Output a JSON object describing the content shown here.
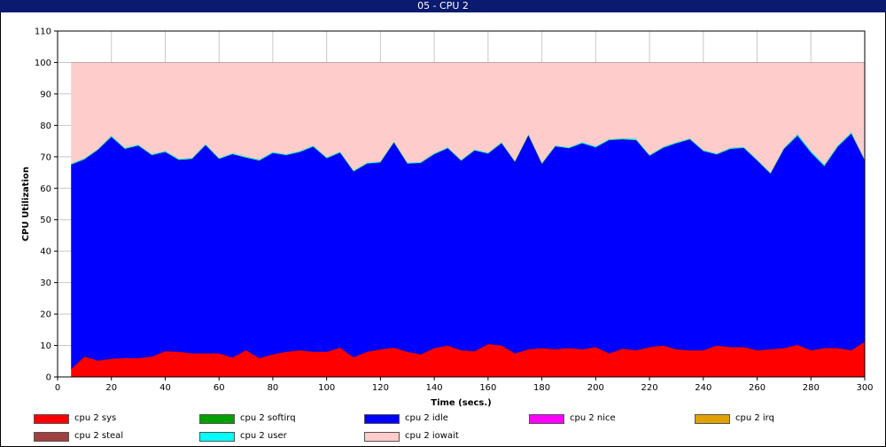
{
  "window": {
    "title": "05 - CPU 2"
  },
  "chart_data": {
    "type": "area",
    "stacked": true,
    "title": "05 - CPU 2",
    "xlabel": "Time (secs.)",
    "ylabel": "CPU Utilization",
    "xlim": [
      0,
      300
    ],
    "ylim": [
      0,
      110
    ],
    "xticks": [
      "0",
      "20",
      "40",
      "60",
      "80",
      "100",
      "120",
      "140",
      "160",
      "180",
      "200",
      "220",
      "240",
      "260",
      "280",
      "300"
    ],
    "yticks": [
      "0",
      "10",
      "20",
      "30",
      "40",
      "50",
      "60",
      "70",
      "80",
      "90",
      "100",
      "110"
    ],
    "grid": true,
    "legend_position": "bottom",
    "x": [
      5,
      10,
      15,
      20,
      25,
      30,
      35,
      40,
      45,
      50,
      55,
      60,
      65,
      70,
      75,
      80,
      85,
      90,
      95,
      100,
      105,
      110,
      115,
      120,
      125,
      130,
      135,
      140,
      145,
      150,
      155,
      160,
      165,
      170,
      175,
      180,
      185,
      190,
      195,
      200,
      205,
      210,
      215,
      220,
      225,
      230,
      235,
      240,
      245,
      250,
      255,
      260,
      265,
      270,
      275,
      280,
      285,
      290,
      295,
      300
    ],
    "series": [
      {
        "name": "cpu 2 sys",
        "color": "#ff0000",
        "values": [
          2.5,
          6.5,
          5.2,
          5.8,
          6.0,
          6.0,
          6.5,
          8.2,
          8.0,
          7.5,
          7.5,
          7.5,
          6.2,
          8.5,
          6.0,
          7.2,
          8.0,
          8.5,
          8.0,
          8.0,
          9.3,
          6.3,
          8.0,
          8.8,
          9.3,
          8.0,
          7.2,
          9.2,
          10.0,
          8.5,
          8.2,
          10.5,
          10.0,
          7.5,
          8.8,
          9.2,
          8.8,
          9.2,
          8.8,
          9.5,
          7.5,
          9.0,
          8.5,
          9.5,
          10.0,
          8.8,
          8.5,
          8.5,
          10.0,
          9.5,
          9.5,
          8.5,
          8.8,
          9.2,
          10.2,
          8.5,
          9.2,
          9.2,
          8.5,
          11.2
        ]
      },
      {
        "name": "cpu 2 softirq",
        "color": "#00a000",
        "values": [
          0,
          0,
          0,
          0,
          0,
          0,
          0,
          0,
          0,
          0,
          0,
          0,
          0,
          0,
          0,
          0,
          0,
          0,
          0,
          0,
          0,
          0,
          0,
          0,
          0,
          0,
          0,
          0,
          0,
          0,
          0,
          0,
          0,
          0,
          0,
          0,
          0,
          0,
          0,
          0,
          0,
          0,
          0,
          0,
          0,
          0,
          0,
          0,
          0,
          0,
          0,
          0,
          0,
          0,
          0,
          0,
          0,
          0,
          0,
          0
        ]
      },
      {
        "name": "cpu 2 idle",
        "color": "#0000ff",
        "values": [
          65.0,
          62.7,
          67.0,
          70.5,
          66.5,
          67.5,
          64.0,
          63.3,
          61.0,
          61.8,
          66.2,
          61.8,
          64.6,
          61.2,
          62.8,
          64.0,
          62.5,
          63.0,
          65.2,
          61.5,
          62.0,
          59.0,
          59.8,
          59.4,
          65.2,
          59.8,
          60.8,
          61.6,
          62.7,
          60.2,
          63.8,
          60.5,
          64.3,
          60.8,
          68.0,
          58.5,
          64.5,
          63.5,
          65.5,
          63.5,
          67.8,
          66.5,
          66.8,
          60.8,
          62.8,
          65.5,
          67.0,
          63.3,
          60.7,
          63.0,
          63.3,
          60.3,
          55.8,
          63.3,
          66.5,
          62.8,
          57.8,
          64.0,
          68.8,
          57.6
        ]
      },
      {
        "name": "cpu 2 nice",
        "color": "#ff00ff",
        "values": [
          0,
          0,
          0,
          0,
          0,
          0,
          0,
          0,
          0,
          0,
          0,
          0,
          0,
          0,
          0,
          0,
          0,
          0,
          0,
          0,
          0,
          0,
          0,
          0,
          0,
          0,
          0,
          0,
          0,
          0,
          0,
          0,
          0,
          0,
          0,
          0,
          0,
          0,
          0,
          0,
          0,
          0,
          0,
          0,
          0,
          0,
          0,
          0,
          0,
          0,
          0,
          0,
          0,
          0,
          0,
          0,
          0,
          0,
          0,
          0
        ]
      },
      {
        "name": "cpu 2 irq",
        "color": "#e0a000",
        "values": [
          0,
          0,
          0,
          0,
          0,
          0,
          0,
          0,
          0,
          0,
          0,
          0,
          0,
          0,
          0,
          0,
          0,
          0,
          0,
          0,
          0,
          0,
          0,
          0,
          0,
          0,
          0,
          0,
          0,
          0,
          0,
          0,
          0,
          0,
          0,
          0,
          0,
          0,
          0,
          0,
          0,
          0,
          0,
          0,
          0,
          0,
          0,
          0,
          0,
          0,
          0,
          0,
          0,
          0,
          0,
          0,
          0,
          0,
          0,
          0
        ]
      },
      {
        "name": "cpu 2 steal",
        "color": "#a04040",
        "values": [
          0,
          0,
          0,
          0,
          0,
          0,
          0,
          0,
          0,
          0,
          0,
          0,
          0,
          0,
          0,
          0,
          0,
          0,
          0,
          0,
          0,
          0,
          0,
          0,
          0,
          0,
          0,
          0,
          0,
          0,
          0,
          0,
          0,
          0,
          0,
          0,
          0,
          0,
          0,
          0,
          0,
          0,
          0,
          0,
          0,
          0,
          0,
          0,
          0,
          0,
          0,
          0,
          0,
          0,
          0,
          0,
          0,
          0,
          0,
          0
        ]
      },
      {
        "name": "cpu 2 user",
        "color": "#00ffff",
        "values": [
          0.3,
          0.3,
          0.3,
          0.4,
          0.3,
          0.3,
          0.3,
          0.3,
          0.3,
          0.3,
          0.3,
          0.3,
          0.3,
          0.3,
          0.3,
          0.3,
          0.3,
          0.3,
          0.3,
          0.3,
          0.3,
          0.3,
          0.3,
          0.3,
          0.3,
          0.3,
          0.3,
          0.3,
          0.3,
          0.3,
          0.3,
          0.3,
          0.3,
          0.3,
          0.3,
          0.3,
          0.3,
          0.3,
          0.3,
          0.3,
          0.3,
          0.3,
          0.4,
          0.3,
          0.3,
          0.3,
          0.3,
          0.3,
          0.3,
          0.3,
          0.3,
          0.3,
          0.3,
          0.3,
          0.5,
          0.5,
          0.5,
          0.4,
          0.5,
          0.3
        ]
      },
      {
        "name": "cpu 2 iowait",
        "color": "#ffcccc",
        "values": [
          32.2,
          30.5,
          27.5,
          23.3,
          27.2,
          26.2,
          29.2,
          28.2,
          30.7,
          30.4,
          26.0,
          30.4,
          28.9,
          30.0,
          30.9,
          28.5,
          29.2,
          28.2,
          26.5,
          30.2,
          28.4,
          34.4,
          31.9,
          31.5,
          25.2,
          31.9,
          31.7,
          28.9,
          27.0,
          31.0,
          27.7,
          28.7,
          25.4,
          31.4,
          22.9,
          32.0,
          26.4,
          27.0,
          25.4,
          26.7,
          24.4,
          24.2,
          24.3,
          29.4,
          26.9,
          25.4,
          24.2,
          27.9,
          29.0,
          27.2,
          26.9,
          30.9,
          35.1,
          27.2,
          22.8,
          28.2,
          32.5,
          26.4,
          22.2,
          30.9
        ]
      }
    ]
  },
  "legend": [
    {
      "label": "cpu 2 sys",
      "color": "#ff0000"
    },
    {
      "label": "cpu 2 softirq",
      "color": "#00a000"
    },
    {
      "label": "cpu 2 idle",
      "color": "#0000ff"
    },
    {
      "label": "cpu 2 nice",
      "color": "#ff00ff"
    },
    {
      "label": "cpu 2 irq",
      "color": "#e0a000"
    },
    {
      "label": "cpu 2 steal",
      "color": "#a04040"
    },
    {
      "label": "cpu 2 user",
      "color": "#00ffff"
    },
    {
      "label": "cpu 2 iowait",
      "color": "#ffcccc"
    }
  ]
}
